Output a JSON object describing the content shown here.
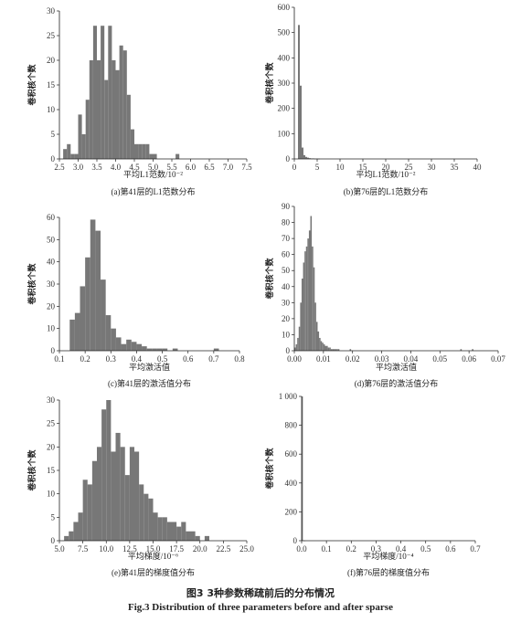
{
  "figure": {
    "caption_zh": "图3 3种参数稀疏前后的分布情况",
    "caption_en": "Fig.3 Distribution of three parameters before and after sparse"
  },
  "chart_data": [
    {
      "type": "bar",
      "caption": "(a)第41层的L1范数分布",
      "xlabel": "平均L1范数/10⁻²",
      "ylabel": "卷积核个数",
      "xlim": [
        2.5,
        7.5
      ],
      "ylim": [
        0,
        30
      ],
      "xticks": [
        "2.5",
        "3.0",
        "3.5",
        "4.0",
        "4.5",
        "5.0",
        "5.5",
        "6.0",
        "6.5",
        "7.0",
        "7.5"
      ],
      "yticks": [
        "0",
        "5",
        "10",
        "15",
        "20",
        "25",
        "30"
      ],
      "bin_start": 2.6,
      "bin_width": 0.1,
      "values": [
        2,
        3,
        1,
        1,
        9,
        5,
        12,
        20,
        27,
        20,
        27,
        16,
        27,
        20,
        18,
        23,
        22,
        13,
        6,
        3,
        3,
        3,
        3,
        1,
        1,
        0,
        0,
        0,
        0,
        0,
        1
      ]
    },
    {
      "type": "bar",
      "caption": "(b)第76层的L1范数分布",
      "xlabel": "平均L1范数/10⁻²",
      "ylabel": "卷积核个数",
      "xlim": [
        0,
        40
      ],
      "ylim": [
        0,
        600
      ],
      "xticks": [
        "0",
        "5",
        "10",
        "15",
        "20",
        "25",
        "30",
        "35",
        "40"
      ],
      "yticks": [
        "0",
        "100",
        "200",
        "300",
        "400",
        "500",
        "600"
      ],
      "bin_start": 0.8,
      "bin_width": 0.4,
      "values": [
        530,
        290,
        45,
        15,
        8,
        5,
        3,
        2,
        2,
        1,
        1,
        1
      ]
    },
    {
      "type": "bar",
      "caption": "(c)第41层的激活值分布",
      "xlabel": "平均激活值",
      "ylabel": "卷积核个数",
      "xlim": [
        0.1,
        0.8
      ],
      "ylim": [
        0,
        60
      ],
      "xticks": [
        "0.1",
        "0.2",
        "0.3",
        "0.4",
        "0.5",
        "0.6",
        "0.7",
        "0.8"
      ],
      "yticks": [
        "0",
        "10",
        "20",
        "30",
        "40",
        "50",
        "60"
      ],
      "bin_start": 0.14,
      "bin_width": 0.02,
      "values": [
        14,
        17,
        29,
        42,
        59,
        54,
        32,
        16,
        10,
        6,
        3,
        5,
        4,
        3,
        2,
        1,
        1,
        1,
        1,
        0,
        1,
        0,
        0,
        0,
        0,
        0,
        0,
        0,
        1,
        0,
        0,
        0,
        0,
        0,
        0
      ]
    },
    {
      "type": "bar",
      "caption": "(d)第76层的激活值分布",
      "xlabel": "平均激活值",
      "ylabel": "卷积核个数",
      "xlim": [
        0,
        0.07
      ],
      "ylim": [
        0,
        90
      ],
      "xticks": [
        "0.00",
        "0.01",
        "0.02",
        "0.03",
        "0.04",
        "0.05",
        "0.06",
        "0.07"
      ],
      "yticks": [
        "0",
        "10",
        "20",
        "30",
        "40",
        "50",
        "60",
        "70",
        "80",
        "90"
      ],
      "bin_start": 0.0,
      "bin_width": 0.0005,
      "values": [
        2,
        4,
        8,
        15,
        30,
        45,
        55,
        62,
        65,
        70,
        75,
        84,
        65,
        52,
        30,
        18,
        12,
        8,
        6,
        5,
        4,
        3,
        3,
        2,
        2,
        1,
        1,
        1,
        1,
        1,
        1,
        0,
        0,
        0,
        0,
        0,
        0,
        0,
        1,
        0,
        0,
        0,
        0,
        0,
        0,
        0,
        0,
        0,
        0,
        0,
        0,
        0,
        0,
        0,
        0,
        0,
        0,
        0,
        0,
        0,
        0,
        0,
        0,
        0,
        0,
        0,
        0,
        0,
        0,
        0,
        0,
        0,
        0,
        0,
        0,
        0,
        0,
        0,
        0,
        0,
        0,
        0,
        0,
        0,
        0,
        0,
        0,
        0,
        0,
        0,
        0,
        0,
        0,
        0,
        0,
        0,
        0,
        0,
        0,
        0,
        0,
        0,
        0,
        0,
        0,
        0,
        0,
        0,
        0,
        0,
        0,
        0,
        0,
        0,
        1,
        0,
        0,
        0,
        0,
        0,
        0,
        0,
        1
      ]
    },
    {
      "type": "bar",
      "caption": "(e)第41层的梯度值分布",
      "xlabel": "平均梯度/10⁻⁶",
      "ylabel": "卷积核个数",
      "xlim": [
        5.0,
        25.0
      ],
      "ylim": [
        0,
        30
      ],
      "xticks": [
        "5.0",
        "7.5",
        "10.0",
        "12.5",
        "15.0",
        "17.5",
        "20.0",
        "22.5",
        "25.0"
      ],
      "yticks": [
        "0",
        "5",
        "10",
        "15",
        "20",
        "25",
        "30"
      ],
      "bin_start": 5.5,
      "bin_width": 0.5,
      "values": [
        1,
        2,
        4,
        6,
        13,
        12,
        17,
        20,
        28,
        30,
        19,
        23,
        20,
        14,
        20,
        19,
        12,
        10,
        9,
        6,
        5,
        5,
        4,
        4,
        3,
        4,
        2,
        2,
        1,
        0,
        1,
        0,
        0
      ]
    },
    {
      "type": "bar",
      "caption": "(f)第76层的梯度值分布",
      "xlabel": "平均梯度/10⁻⁴",
      "ylabel": "卷积核个数",
      "xlim": [
        0,
        0.7
      ],
      "ylim": [
        0,
        1000
      ],
      "xticks": [
        "0.0",
        "0.1",
        "0.2",
        "0.3",
        "0.4",
        "0.5",
        "0.6",
        "0.7"
      ],
      "yticks": [
        "0",
        "200",
        "400",
        "600",
        "800",
        "1 000"
      ],
      "bin_start": 0.0,
      "bin_width": 0.005,
      "values": [
        1000,
        2,
        1
      ]
    }
  ]
}
